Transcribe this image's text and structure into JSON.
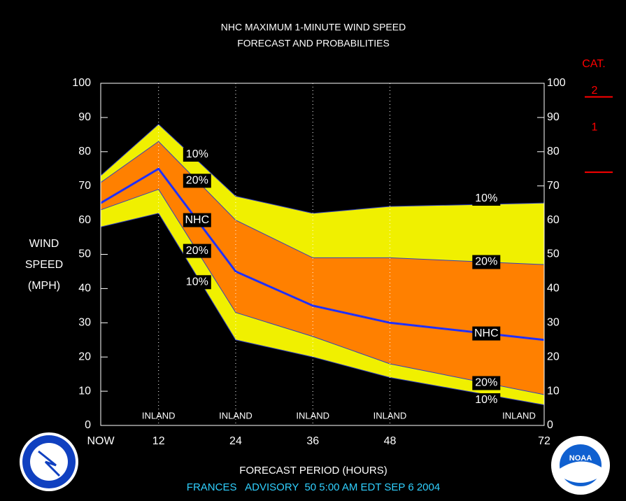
{
  "chart_data": {
    "type": "band",
    "title": "NHC MAXIMUM 1-MINUTE WIND SPEED",
    "subtitle": "FORECAST AND PROBABILITIES",
    "ylabel": [
      "WIND",
      "SPEED",
      "(MPH)"
    ],
    "xlabel": "FORECAST PERIOD (HOURS)",
    "footer": "FRANCES   ADVISORY  50 5:00 AM EDT SEP 6 2004",
    "x": [
      3,
      12,
      24,
      36,
      48,
      72
    ],
    "series": [
      {
        "name": "10%",
        "color": "#f0f000",
        "values": [
          73,
          88,
          67,
          62,
          64,
          65
        ]
      },
      {
        "name": "20%",
        "color": "#ff8000",
        "values": [
          71,
          83,
          60,
          49,
          49,
          47
        ]
      },
      {
        "name": "NHC",
        "color": "#2030ff",
        "values": [
          65,
          75,
          45,
          35,
          30,
          25
        ]
      },
      {
        "name": "20%",
        "color": "#ff8000",
        "values": [
          63,
          69,
          33,
          26,
          18,
          9
        ]
      },
      {
        "name": "10%",
        "color": "#f0f000",
        "values": [
          58,
          62,
          25,
          20,
          14,
          6
        ]
      }
    ],
    "xlim": [
      3,
      72
    ],
    "xticks": [
      {
        "value": 3,
        "label": "NOW"
      },
      12,
      24,
      36,
      48,
      72
    ],
    "ylim": [
      0,
      100
    ],
    "yticks": [
      0,
      10,
      20,
      30,
      40,
      50,
      60,
      70,
      80,
      90,
      100
    ],
    "y2lim": [
      0,
      100
    ],
    "y2ticks": [
      0,
      10,
      20,
      30,
      40,
      50,
      60,
      70,
      80,
      90,
      100
    ],
    "inland_label": "INLAND",
    "inland": [
      12,
      24,
      36,
      48,
      72
    ],
    "category_title": "CAT.",
    "category_labels": [
      "2",
      "1"
    ],
    "category_lines": [
      96,
      74
    ],
    "logo_text": "NOAA"
  }
}
